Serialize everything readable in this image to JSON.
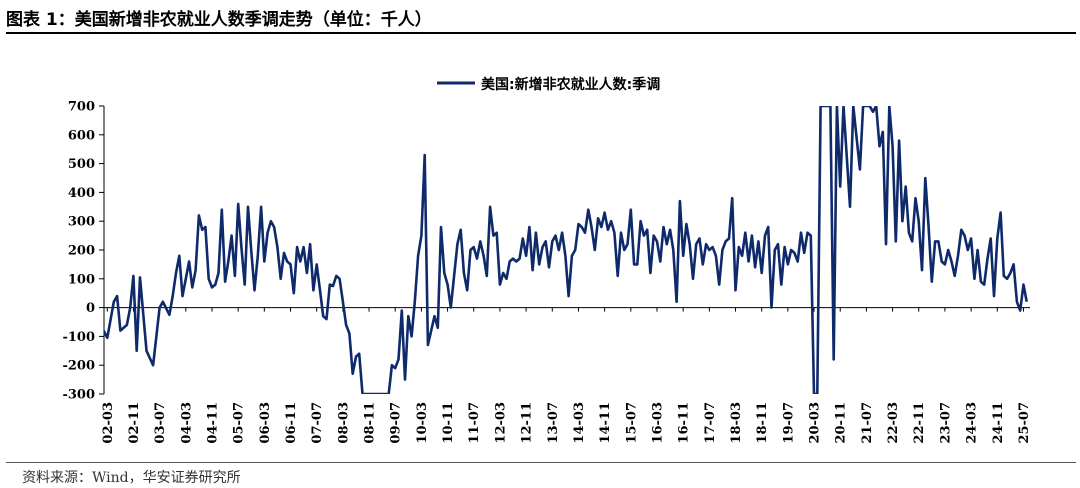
{
  "figure": {
    "title": "图表 1：美国新增非农就业人数季调走势（单位：千人）",
    "source": "资料来源：Wind，华安证券研究所"
  },
  "colors": {
    "series": "#0f2a6b",
    "axis": "#000000"
  },
  "chart_data": {
    "type": "line",
    "title": "",
    "xlabel": "",
    "ylabel": "",
    "ylim": [
      -300,
      700
    ],
    "yticks": [
      -300,
      -200,
      -100,
      0,
      100,
      200,
      300,
      400,
      500,
      600,
      700
    ],
    "grid": false,
    "legend_placement": "top-center",
    "x_tick_labels": [
      "02-03",
      "02-11",
      "03-07",
      "04-03",
      "04-11",
      "05-07",
      "06-03",
      "06-11",
      "07-07",
      "08-03",
      "08-11",
      "09-07",
      "10-03",
      "10-11",
      "11-07",
      "12-03",
      "12-11",
      "13-07",
      "14-03",
      "14-11",
      "15-07",
      "16-03",
      "16-11",
      "17-07",
      "18-03",
      "18-11",
      "19-07",
      "20-03",
      "20-11",
      "21-07",
      "22-03",
      "22-11",
      "23-07",
      "24-03",
      "24-11",
      "25-07"
    ],
    "series": [
      {
        "name": "美国:新增非农就业人数:季调",
        "points": [
          [
            "2002-01",
            -60
          ],
          [
            "2002-03",
            -105
          ],
          [
            "2002-05",
            20
          ],
          [
            "2002-06",
            40
          ],
          [
            "2002-07",
            -80
          ],
          [
            "2002-09",
            -60
          ],
          [
            "2002-10",
            0
          ],
          [
            "2002-11",
            110
          ],
          [
            "2002-12",
            -150
          ],
          [
            "2003-01",
            105
          ],
          [
            "2003-03",
            -150
          ],
          [
            "2003-05",
            -200
          ],
          [
            "2003-07",
            0
          ],
          [
            "2003-08",
            20
          ],
          [
            "2003-10",
            -25
          ],
          [
            "2003-11",
            40
          ],
          [
            "2003-12",
            120
          ],
          [
            "2004-01",
            180
          ],
          [
            "2004-02",
            40
          ],
          [
            "2004-03",
            100
          ],
          [
            "2004-04",
            160
          ],
          [
            "2004-05",
            70
          ],
          [
            "2004-06",
            130
          ],
          [
            "2004-07",
            320
          ],
          [
            "2004-08",
            270
          ],
          [
            "2004-09",
            280
          ],
          [
            "2004-10",
            100
          ],
          [
            "2004-11",
            70
          ],
          [
            "2004-12",
            80
          ],
          [
            "2005-01",
            120
          ],
          [
            "2005-02",
            340
          ],
          [
            "2005-03",
            90
          ],
          [
            "2005-04",
            160
          ],
          [
            "2005-05",
            250
          ],
          [
            "2005-06",
            110
          ],
          [
            "2005-07",
            360
          ],
          [
            "2005-08",
            210
          ],
          [
            "2005-09",
            80
          ],
          [
            "2005-10",
            350
          ],
          [
            "2005-11",
            200
          ],
          [
            "2005-12",
            60
          ],
          [
            "2006-01",
            180
          ],
          [
            "2006-02",
            350
          ],
          [
            "2006-03",
            160
          ],
          [
            "2006-04",
            260
          ],
          [
            "2006-05",
            300
          ],
          [
            "2006-06",
            280
          ],
          [
            "2006-07",
            210
          ],
          [
            "2006-08",
            100
          ],
          [
            "2006-09",
            190
          ],
          [
            "2006-10",
            160
          ],
          [
            "2006-11",
            150
          ],
          [
            "2006-12",
            50
          ],
          [
            "2007-01",
            210
          ],
          [
            "2007-02",
            160
          ],
          [
            "2007-03",
            210
          ],
          [
            "2007-04",
            120
          ],
          [
            "2007-05",
            220
          ],
          [
            "2007-06",
            60
          ],
          [
            "2007-07",
            150
          ],
          [
            "2007-08",
            60
          ],
          [
            "2007-09",
            -30
          ],
          [
            "2007-10",
            -40
          ],
          [
            "2007-11",
            80
          ],
          [
            "2007-12",
            75
          ],
          [
            "2008-01",
            110
          ],
          [
            "2008-02",
            100
          ],
          [
            "2008-03",
            20
          ],
          [
            "2008-04",
            -60
          ],
          [
            "2008-05",
            -90
          ],
          [
            "2008-06",
            -230
          ],
          [
            "2008-07",
            -170
          ],
          [
            "2008-08",
            -160
          ],
          [
            "2008-09",
            -300
          ],
          [
            "2009-05",
            -300
          ],
          [
            "2009-06",
            -200
          ],
          [
            "2009-07",
            -210
          ],
          [
            "2009-08",
            -180
          ],
          [
            "2009-09",
            -10
          ],
          [
            "2009-10",
            -250
          ],
          [
            "2009-11",
            -30
          ],
          [
            "2009-12",
            -100
          ],
          [
            "2010-01",
            20
          ],
          [
            "2010-02",
            180
          ],
          [
            "2010-03",
            250
          ],
          [
            "2010-04",
            530
          ],
          [
            "2010-05",
            -130
          ],
          [
            "2010-06",
            -80
          ],
          [
            "2010-07",
            -30
          ],
          [
            "2010-08",
            -70
          ],
          [
            "2010-09",
            280
          ],
          [
            "2010-10",
            120
          ],
          [
            "2010-11",
            80
          ],
          [
            "2010-12",
            0
          ],
          [
            "2011-01",
            110
          ],
          [
            "2011-02",
            220
          ],
          [
            "2011-03",
            270
          ],
          [
            "2011-04",
            120
          ],
          [
            "2011-05",
            60
          ],
          [
            "2011-06",
            200
          ],
          [
            "2011-07",
            210
          ],
          [
            "2011-08",
            170
          ],
          [
            "2011-09",
            230
          ],
          [
            "2011-10",
            180
          ],
          [
            "2011-11",
            110
          ],
          [
            "2011-12",
            350
          ],
          [
            "2012-01",
            250
          ],
          [
            "2012-02",
            260
          ],
          [
            "2012-03",
            80
          ],
          [
            "2012-04",
            120
          ],
          [
            "2012-05",
            100
          ],
          [
            "2012-06",
            160
          ],
          [
            "2012-07",
            170
          ],
          [
            "2012-08",
            160
          ],
          [
            "2012-09",
            170
          ],
          [
            "2012-10",
            240
          ],
          [
            "2012-11",
            180
          ],
          [
            "2012-12",
            280
          ],
          [
            "2013-01",
            130
          ],
          [
            "2013-02",
            260
          ],
          [
            "2013-03",
            150
          ],
          [
            "2013-04",
            210
          ],
          [
            "2013-05",
            230
          ],
          [
            "2013-06",
            140
          ],
          [
            "2013-07",
            230
          ],
          [
            "2013-08",
            250
          ],
          [
            "2013-09",
            200
          ],
          [
            "2013-10",
            260
          ],
          [
            "2013-11",
            180
          ],
          [
            "2013-12",
            40
          ],
          [
            "2014-01",
            180
          ],
          [
            "2014-02",
            200
          ],
          [
            "2014-03",
            290
          ],
          [
            "2014-04",
            280
          ],
          [
            "2014-05",
            260
          ],
          [
            "2014-06",
            340
          ],
          [
            "2014-07",
            280
          ],
          [
            "2014-08",
            200
          ],
          [
            "2014-09",
            310
          ],
          [
            "2014-10",
            280
          ],
          [
            "2014-11",
            330
          ],
          [
            "2014-12",
            270
          ],
          [
            "2015-01",
            300
          ],
          [
            "2015-02",
            260
          ],
          [
            "2015-03",
            110
          ],
          [
            "2015-04",
            260
          ],
          [
            "2015-05",
            200
          ],
          [
            "2015-06",
            220
          ],
          [
            "2015-07",
            340
          ],
          [
            "2015-08",
            150
          ],
          [
            "2015-09",
            150
          ],
          [
            "2015-10",
            300
          ],
          [
            "2015-11",
            250
          ],
          [
            "2015-12",
            270
          ],
          [
            "2016-01",
            120
          ],
          [
            "2016-02",
            250
          ],
          [
            "2016-03",
            230
          ],
          [
            "2016-04",
            160
          ],
          [
            "2016-05",
            280
          ],
          [
            "2016-06",
            220
          ],
          [
            "2016-07",
            270
          ],
          [
            "2016-08",
            200
          ],
          [
            "2016-09",
            20
          ],
          [
            "2016-10",
            370
          ],
          [
            "2016-11",
            180
          ],
          [
            "2016-12",
            290
          ],
          [
            "2017-01",
            220
          ],
          [
            "2017-02",
            100
          ],
          [
            "2017-03",
            220
          ],
          [
            "2017-04",
            240
          ],
          [
            "2017-05",
            150
          ],
          [
            "2017-06",
            220
          ],
          [
            "2017-07",
            200
          ],
          [
            "2017-08",
            210
          ],
          [
            "2017-09",
            180
          ],
          [
            "2017-10",
            80
          ],
          [
            "2017-11",
            200
          ],
          [
            "2017-12",
            230
          ],
          [
            "2018-01",
            240
          ],
          [
            "2018-02",
            380
          ],
          [
            "2018-03",
            60
          ],
          [
            "2018-04",
            210
          ],
          [
            "2018-05",
            180
          ],
          [
            "2018-06",
            260
          ],
          [
            "2018-07",
            160
          ],
          [
            "2018-08",
            250
          ],
          [
            "2018-09",
            140
          ],
          [
            "2018-10",
            230
          ],
          [
            "2018-11",
            120
          ],
          [
            "2018-12",
            250
          ],
          [
            "2019-01",
            280
          ],
          [
            "2019-02",
            0
          ],
          [
            "2019-03",
            200
          ],
          [
            "2019-04",
            220
          ],
          [
            "2019-05",
            80
          ],
          [
            "2019-06",
            210
          ],
          [
            "2019-07",
            150
          ],
          [
            "2019-08",
            200
          ],
          [
            "2019-09",
            190
          ],
          [
            "2019-10",
            160
          ],
          [
            "2019-11",
            260
          ],
          [
            "2019-12",
            190
          ],
          [
            "2020-01",
            260
          ],
          [
            "2020-02",
            250
          ],
          [
            "2020-03",
            -300
          ],
          [
            "2020-04",
            -300
          ],
          [
            "2020-05",
            700
          ],
          [
            "2020-08",
            700
          ],
          [
            "2020-09",
            -180
          ],
          [
            "2020-10",
            700
          ],
          [
            "2020-11",
            420
          ],
          [
            "2020-12",
            700
          ],
          [
            "2021-02",
            350
          ],
          [
            "2021-03",
            700
          ],
          [
            "2021-05",
            480
          ],
          [
            "2021-06",
            700
          ],
          [
            "2021-08",
            700
          ],
          [
            "2021-09",
            680
          ],
          [
            "2021-10",
            700
          ],
          [
            "2021-11",
            560
          ],
          [
            "2021-12",
            610
          ],
          [
            "2022-01",
            220
          ],
          [
            "2022-02",
            700
          ],
          [
            "2022-03",
            560
          ],
          [
            "2022-04",
            230
          ],
          [
            "2022-05",
            580
          ],
          [
            "2022-06",
            300
          ],
          [
            "2022-07",
            420
          ],
          [
            "2022-08",
            260
          ],
          [
            "2022-09",
            230
          ],
          [
            "2022-10",
            380
          ],
          [
            "2022-11",
            300
          ],
          [
            "2022-12",
            130
          ],
          [
            "2023-01",
            450
          ],
          [
            "2023-02",
            280
          ],
          [
            "2023-03",
            90
          ],
          [
            "2023-04",
            230
          ],
          [
            "2023-05",
            230
          ],
          [
            "2023-06",
            160
          ],
          [
            "2023-07",
            150
          ],
          [
            "2023-08",
            200
          ],
          [
            "2023-09",
            160
          ],
          [
            "2023-10",
            110
          ],
          [
            "2023-11",
            180
          ],
          [
            "2023-12",
            270
          ],
          [
            "2024-01",
            250
          ],
          [
            "2024-02",
            200
          ],
          [
            "2024-03",
            240
          ],
          [
            "2024-04",
            100
          ],
          [
            "2024-05",
            200
          ],
          [
            "2024-06",
            90
          ],
          [
            "2024-07",
            80
          ],
          [
            "2024-08",
            170
          ],
          [
            "2024-09",
            240
          ],
          [
            "2024-10",
            40
          ],
          [
            "2024-11",
            240
          ],
          [
            "2024-12",
            330
          ],
          [
            "2025-01",
            110
          ],
          [
            "2025-02",
            100
          ],
          [
            "2025-03",
            120
          ],
          [
            "2025-04",
            150
          ],
          [
            "2025-05",
            20
          ],
          [
            "2025-06",
            -10
          ],
          [
            "2025-07",
            80
          ],
          [
            "2025-08",
            20
          ]
        ]
      }
    ]
  }
}
